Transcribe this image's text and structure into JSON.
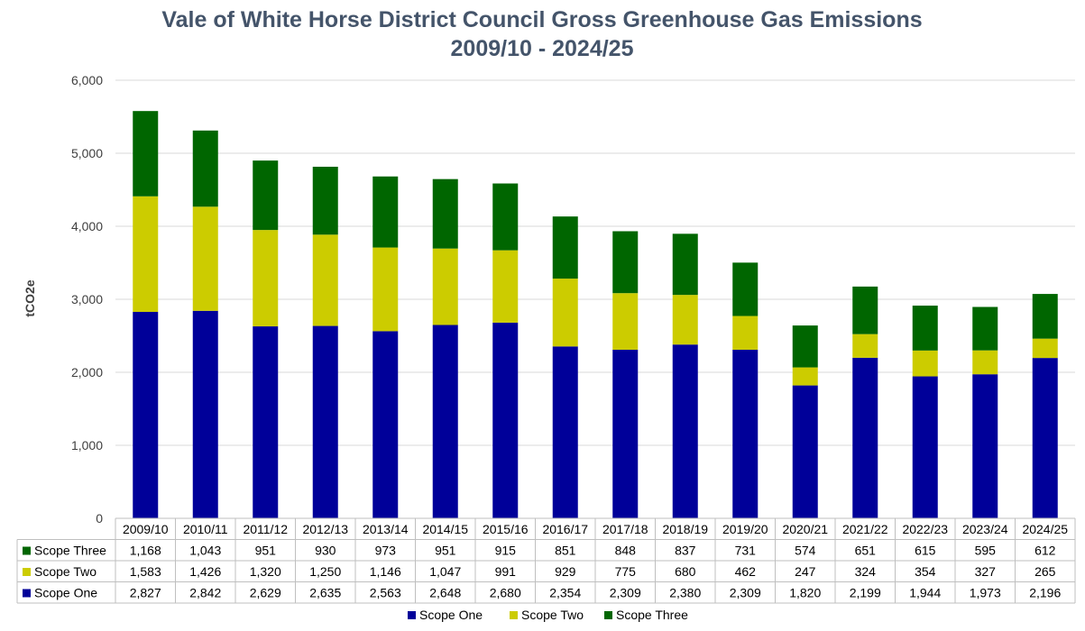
{
  "chart_data": {
    "type": "bar",
    "stacked": true,
    "title_line1": "Vale of White Horse District Council Gross Greenhouse Gas Emissions",
    "title_line2": "2009/10 - 2024/25",
    "ylabel": "tCO2e",
    "ylim": [
      0,
      6000
    ],
    "yticks": [
      "0",
      "1,000",
      "2,000",
      "3,000",
      "4,000",
      "5,000",
      "6,000"
    ],
    "grid": true,
    "legend_position": "bottom",
    "categories": [
      "2009/10",
      "2010/11",
      "2011/12",
      "2012/13",
      "2013/14",
      "2014/15",
      "2015/16",
      "2016/17",
      "2017/18",
      "2018/19",
      "2019/20",
      "2020/21",
      "2021/22",
      "2022/23",
      "2023/24",
      "2024/25"
    ],
    "series": [
      {
        "name": "Scope One",
        "color": "#000099",
        "values": [
          2827,
          2842,
          2629,
          2635,
          2563,
          2648,
          2680,
          2354,
          2309,
          2380,
          2309,
          1820,
          2199,
          1944,
          1973,
          2196
        ],
        "labels": [
          "2,827",
          "2,842",
          "2,629",
          "2,635",
          "2,563",
          "2,648",
          "2,680",
          "2,354",
          "2,309",
          "2,380",
          "2,309",
          "1,820",
          "2,199",
          "1,944",
          "1,973",
          "2,196"
        ]
      },
      {
        "name": "Scope Two",
        "color": "#cccc00",
        "values": [
          1583,
          1426,
          1320,
          1250,
          1146,
          1047,
          991,
          929,
          775,
          680,
          462,
          247,
          324,
          354,
          327,
          265
        ],
        "labels": [
          "1,583",
          "1,426",
          "1,320",
          "1,250",
          "1,146",
          "1,047",
          "991",
          "929",
          "775",
          "680",
          "462",
          "247",
          "324",
          "354",
          "327",
          "265"
        ]
      },
      {
        "name": "Scope Three",
        "color": "#006600",
        "values": [
          1168,
          1043,
          951,
          930,
          973,
          951,
          915,
          851,
          848,
          837,
          731,
          574,
          651,
          615,
          595,
          612
        ],
        "labels": [
          "1,168",
          "1,043",
          "951",
          "930",
          "973",
          "951",
          "915",
          "851",
          "848",
          "837",
          "731",
          "574",
          "651",
          "615",
          "595",
          "612"
        ]
      }
    ]
  }
}
